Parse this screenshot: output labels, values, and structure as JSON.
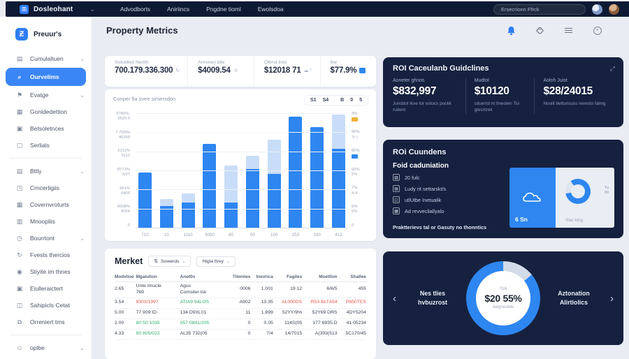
{
  "topbar": {
    "logo_glyph": "⊞",
    "logo": "Dosleohant",
    "nav": [
      "Advodborts",
      "Aniriincs",
      "Pngdne tioml",
      "Ewolsdoa"
    ],
    "search": "Ersecrionn Ffrck"
  },
  "icons": {
    "chevron_down": "⌄",
    "sort": "⇅",
    "help": "⊙",
    "expand": "⤢",
    "prev": "‹",
    "next": "›"
  },
  "sidebar": {
    "brand_glyph": "Ƶ",
    "brand": "Preuur's",
    "items": [
      {
        "name": "cumulaltuen",
        "icon": "document",
        "glyph": "▤",
        "label": "Cumulaltuen",
        "chevron": true
      },
      {
        "name": "ourvelims",
        "icon": "search",
        "glyph": "⌕",
        "label": "Ourvelims",
        "active": true
      },
      {
        "name": "evatge",
        "icon": "flag",
        "glyph": "⚑",
        "label": "Evatge",
        "chevron": true
      },
      {
        "name": "gonldedettion",
        "icon": "calendar",
        "glyph": "▦",
        "label": "Gonldedettion"
      },
      {
        "name": "betsoletnces",
        "icon": "image",
        "glyph": "▣",
        "label": "Betsoletnces"
      },
      {
        "name": "serlials",
        "icon": "file",
        "glyph": "▢",
        "label": "Serlials"
      },
      {
        "divider": true
      },
      {
        "name": "bttly",
        "icon": "document",
        "glyph": "▤",
        "label": "Bttly",
        "chevron": true
      },
      {
        "name": "crncerligiis",
        "icon": "tag",
        "glyph": "◳",
        "label": "Crncerligiis"
      },
      {
        "name": "covernvroturts",
        "icon": "calendar",
        "glyph": "▦",
        "label": "Covernvroturts"
      },
      {
        "name": "mnoopliis",
        "icon": "clipboard",
        "glyph": "▥",
        "label": "Mnoopliis"
      },
      {
        "name": "bourrtont",
        "icon": "clock",
        "glyph": "◷",
        "label": "Bourrtont",
        "chevron": true
      },
      {
        "name": "fvests-thercios",
        "icon": "refresh",
        "glyph": "↻",
        "label": "Fvests thercios"
      },
      {
        "name": "stiyite-im-thnes",
        "icon": "alert",
        "glyph": "◉",
        "label": "Stiyite im thnes"
      },
      {
        "name": "eiulleraictert",
        "icon": "box",
        "glyph": "▣",
        "label": "Eiulleraictert"
      },
      {
        "name": "sahipicls-cetat",
        "icon": "camera",
        "glyph": "◫",
        "label": "Sahipicls Cetat"
      },
      {
        "name": "orreniert-tms",
        "icon": "copy",
        "glyph": "⧉",
        "label": "Orreniert tms"
      },
      {
        "divider": true
      },
      {
        "name": "oplbe",
        "icon": "smiley",
        "glyph": "☺",
        "label": "oplbe",
        "chevron": true
      }
    ]
  },
  "header": {
    "title": "Property Metrics"
  },
  "stats": [
    {
      "name": "soluldled-nertth",
      "label": "Soluldled Nertth",
      "value": "700.179.336.300",
      "suffix": "↻"
    },
    {
      "name": "anronen-blle",
      "label": "Anronen blle",
      "value": "$4009.54",
      "suffix": "-3"
    },
    {
      "name": "oltrnd-listo",
      "label": "Oltrnd listo",
      "value": "$12018 71",
      "suffix": "☁ *"
    },
    {
      "name": "the",
      "label": "the",
      "value": "$77.9%",
      "swatch": true
    }
  ],
  "chart": {
    "subtitle": "Conper fla svee simersdon",
    "controls": [
      "S1",
      "S4",
      "B",
      "0",
      "5"
    ],
    "left_axis": [
      [
        "6780%,",
        "9520.9"
      ],
      [
        "7.7D6%",
        "46259"
      ],
      [
        "2211%",
        "0113"
      ],
      [
        "8773%",
        "9,07"
      ],
      [
        "961%",
        "6466"
      ],
      [
        "6008%",
        "9024"
      ],
      [
        "0",
        ""
      ]
    ],
    "right_axis": [
      {
        "t1": "3%",
        "t2": "",
        "swatch": "orange"
      },
      {
        "t1": "90%",
        "t2": "7r )",
        "swatch": null
      },
      {
        "t1": "85%",
        "t2": "",
        "swatch": "blue"
      },
      {
        "t1": "50%",
        "t2": "2%",
        "swatch": null
      },
      {
        "t1": "7%",
        "t2": "4-4",
        "swatch": null
      },
      {
        "t1": "5%",
        "t2": "0%",
        "swatch": null
      },
      {
        "t1": "0",
        "t2": "",
        "swatch": null
      }
    ],
    "chart_data": {
      "type": "bar",
      "categories": [
        "710",
        "10",
        "1110",
        "3000",
        "60",
        "00",
        "100",
        "253",
        "100",
        "413"
      ],
      "series": [
        {
          "name": "dark-blue",
          "color": "#2e86f0",
          "values": [
            48,
            19,
            22,
            73,
            22,
            51,
            47,
            97,
            88,
            69
          ]
        },
        {
          "name": "light-blue",
          "color": "#c9ddf8",
          "values": [
            0,
            6,
            8,
            0,
            32,
            12,
            30,
            0,
            0,
            30
          ]
        }
      ],
      "ylim": [
        0,
        100
      ],
      "grid": true,
      "legend_position": "right"
    }
  },
  "table": {
    "title": "Merket",
    "sort1": "Sowerds",
    "sort2": "Higla ttrey",
    "headers": [
      "Modvlioe",
      "Mgalution",
      "Anot0s",
      "Tileniies",
      "Inevrica",
      "Fagiles",
      "Moetllon",
      "Shallee"
    ],
    "rows": [
      {
        "cells": [
          {
            "t": "2.65"
          },
          {
            "t": "Unte Imucle\n769"
          },
          {
            "t": "Agus\nComsiter tsk"
          },
          {
            "t": "0006"
          },
          {
            "t": "1.001"
          },
          {
            "t": "19 12"
          },
          {
            "t": "6/6/5"
          },
          {
            "t": "455"
          }
        ]
      },
      {
        "cells": [
          {
            "t": "3.54"
          },
          {
            "t": "8303/1997",
            "c": "red"
          },
          {
            "t": "ATIA9 94LOS",
            "c": "green"
          },
          {
            "t": "A902"
          },
          {
            "t": "13.35"
          },
          {
            "t": "AL000DS",
            "c": "red"
          },
          {
            "t": "R53 BLTA54",
            "c": "red"
          },
          {
            "t": "P650TES",
            "c": "red"
          }
        ]
      },
      {
        "cells": [
          {
            "t": "5.00"
          },
          {
            "t": "77 909 ID"
          },
          {
            "t": "134 D9XL01"
          },
          {
            "t": "11"
          },
          {
            "t": "1.899"
          },
          {
            "t": "52YY/9%"
          },
          {
            "t": "52Y69 DRS"
          },
          {
            "t": "4DY5204"
          }
        ]
      },
      {
        "cells": [
          {
            "t": "2.00"
          },
          {
            "t": "80 50 1035",
            "c": "green"
          },
          {
            "t": "057 0841/205",
            "c": "green"
          },
          {
            "t": "0"
          },
          {
            "t": "0.05"
          },
          {
            "t": "114S(05"
          },
          {
            "t": "177 6935.D"
          },
          {
            "t": "41 05234"
          }
        ]
      },
      {
        "cells": [
          {
            "t": "4.33"
          },
          {
            "t": "50 805/022",
            "c": "green"
          },
          {
            "t": "AL35 732(05"
          },
          {
            "t": "0"
          },
          {
            "t": "7/4"
          },
          {
            "t": "14/7015"
          },
          {
            "t": "A(393(513"
          },
          {
            "t": "5C170/45"
          }
        ]
      }
    ]
  },
  "roi_guidelines": {
    "title": "ROI Caceulanb Guidclines",
    "cols": [
      {
        "label": "Aoneter ghnos",
        "value": "$832,997",
        "desc": "Junddol Ikve tor extocs pockk rudent"
      },
      {
        "label": "Mudtol",
        "value": "$10120",
        "desc": "cduenst nt fmeolen Tio gtecrtzek"
      },
      {
        "label": "Aoloh Juist",
        "value": "$28/24015",
        "desc": "Noolit betturisuss revesto falmg"
      }
    ]
  },
  "roi_summary": {
    "title": "ROi Cuundens",
    "subtitle": "Foid caduniation",
    "bullets": [
      {
        "glyph": "▨",
        "text": "20 fulc"
      },
      {
        "glyph": "▤",
        "text": "Ludy rit settarskt/s"
      },
      {
        "glyph": "◱",
        "text": "utlUtbe Inetualik"
      },
      {
        "glyph": "▦",
        "text": "Ad revvecliallyalo"
      }
    ],
    "footer": "Praktterievs tal or Gasuty no thonntics",
    "tile": {
      "blue_label": "6 Sn",
      "right_top": "Tu\n00",
      "right_caption": "Slar king"
    }
  },
  "carousel": {
    "left_label": "Nes tlies\nhvbuzrost",
    "right_label": "Aztonation\nAlirtiolics",
    "donut": {
      "top": "Thik",
      "value": "$20 55%",
      "sub": "datgnesible",
      "percent": 86
    }
  },
  "colors": {
    "topbar_bg": "#0e1a33",
    "accent_blue": "#2e7df6",
    "bar_dark": "#2e86f0",
    "bar_light": "#c9ddf8",
    "orange": "#efb03a",
    "dark_card": "#16213f",
    "red": "#e2574c",
    "green": "#2fae6e"
  }
}
